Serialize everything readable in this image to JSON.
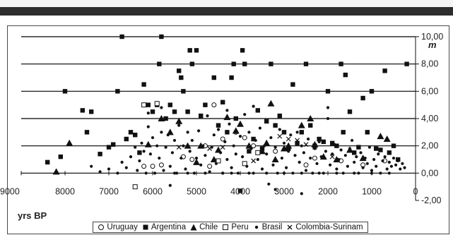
{
  "colors": {
    "ink": "#111111",
    "grid": "#000000",
    "header_bar": "#2d2d2d"
  },
  "chart_data": {
    "type": "scatter",
    "title": "",
    "xlabel": "yrs BP",
    "ylabel": "",
    "y_unit": "m",
    "x_reversed": true,
    "xlim": [
      9000,
      0
    ],
    "ylim": [
      -2,
      10
    ],
    "grid": "horizontal",
    "legend_placement": "bottom",
    "x_tick_labels": [
      "9000",
      "8000",
      "7000",
      "6000",
      "5000",
      "4000",
      "3000",
      "2000",
      "1000",
      "0"
    ],
    "y_tick_labels": [
      "-2,00",
      "0,00",
      "2,00",
      "4,00",
      "6,00",
      "8,00",
      "10,00"
    ],
    "series": [
      {
        "name": "Uruguay",
        "marker": "open-circle",
        "points": [
          [
            6200,
            0.5
          ],
          [
            6000,
            0.5
          ],
          [
            5800,
            0.6
          ],
          [
            5300,
            1.2
          ],
          [
            5100,
            1.0
          ],
          [
            4800,
            2.0
          ],
          [
            4700,
            0.5
          ],
          [
            4600,
            5.0
          ],
          [
            4400,
            2.5
          ],
          [
            4100,
            3.0
          ],
          [
            3900,
            2.6
          ],
          [
            3700,
            2.0
          ],
          [
            3200,
            1.6
          ],
          [
            2500,
            0.6
          ],
          [
            2300,
            1.1
          ],
          [
            1700,
            0.9
          ],
          [
            1200,
            0.6
          ],
          [
            700,
            0.9
          ]
        ]
      },
      {
        "name": "Argentina",
        "marker": "filled-square",
        "points": [
          [
            8400,
            0.8
          ],
          [
            8100,
            1.2
          ],
          [
            8000,
            6.0
          ],
          [
            7600,
            4.6
          ],
          [
            7500,
            3.0
          ],
          [
            7400,
            4.5
          ],
          [
            7200,
            1.4
          ],
          [
            7000,
            1.9
          ],
          [
            6900,
            2.1
          ],
          [
            6800,
            6.0
          ],
          [
            6700,
            10.0
          ],
          [
            6600,
            2.5
          ],
          [
            6500,
            3.0
          ],
          [
            6400,
            2.8
          ],
          [
            6300,
            1.5
          ],
          [
            6200,
            6.5
          ],
          [
            6100,
            5.0
          ],
          [
            6000,
            4.5
          ],
          [
            5900,
            5.0
          ],
          [
            5850,
            8.0
          ],
          [
            5800,
            10.0
          ],
          [
            5700,
            4.0
          ],
          [
            5600,
            5.0
          ],
          [
            5500,
            4.5
          ],
          [
            5400,
            7.5
          ],
          [
            5350,
            7.0
          ],
          [
            5300,
            6.0
          ],
          [
            5200,
            4.5
          ],
          [
            5150,
            9.0
          ],
          [
            5100,
            8.0
          ],
          [
            5000,
            9.0
          ],
          [
            4900,
            4.2
          ],
          [
            4800,
            5.0
          ],
          [
            4600,
            7.0
          ],
          [
            4500,
            3.5
          ],
          [
            4400,
            5.2
          ],
          [
            4300,
            3.0
          ],
          [
            4200,
            7.0
          ],
          [
            4150,
            8.0
          ],
          [
            4100,
            4.0
          ],
          [
            4000,
            -1.3
          ],
          [
            3950,
            9.0
          ],
          [
            3900,
            8.0
          ],
          [
            3800,
            1.6
          ],
          [
            3700,
            2.5
          ],
          [
            3600,
            4.6
          ],
          [
            3500,
            1.8
          ],
          [
            3400,
            3.8
          ],
          [
            3300,
            8.0
          ],
          [
            3200,
            3.5
          ],
          [
            3100,
            4.2
          ],
          [
            3000,
            3.0
          ],
          [
            2900,
            1.8
          ],
          [
            2800,
            6.5
          ],
          [
            2700,
            2.2
          ],
          [
            2600,
            3.0
          ],
          [
            2500,
            8.0
          ],
          [
            2400,
            3.5
          ],
          [
            2300,
            2.0
          ],
          [
            2200,
            2.5
          ],
          [
            2100,
            2.3
          ],
          [
            2000,
            6.0
          ],
          [
            1900,
            2.2
          ],
          [
            1800,
            2.0
          ],
          [
            1700,
            8.0
          ],
          [
            1650,
            3.0
          ],
          [
            1600,
            7.2
          ],
          [
            1500,
            4.5
          ],
          [
            1400,
            1.5
          ],
          [
            1300,
            1.9
          ],
          [
            1200,
            5.5
          ],
          [
            1100,
            3.0
          ],
          [
            1000,
            6.0
          ],
          [
            900,
            1.8
          ],
          [
            800,
            1.7
          ],
          [
            700,
            7.5
          ],
          [
            600,
            1.5
          ],
          [
            500,
            2.0
          ],
          [
            400,
            1.0
          ],
          [
            200,
            8.0
          ]
        ]
      },
      {
        "name": "Chile",
        "marker": "filled-triangle",
        "points": [
          [
            8200,
            0.1
          ],
          [
            7900,
            2.2
          ],
          [
            6100,
            2.1
          ],
          [
            5800,
            4.0
          ],
          [
            5600,
            3.0
          ],
          [
            5400,
            3.8
          ],
          [
            5200,
            2.0
          ],
          [
            5000,
            0.8
          ],
          [
            4900,
            2.0
          ],
          [
            4600,
            1.0
          ],
          [
            4500,
            1.7
          ],
          [
            4300,
            4.1
          ],
          [
            4100,
            3.1
          ],
          [
            4000,
            3.6
          ],
          [
            3800,
            2.0
          ],
          [
            3500,
            1.6
          ],
          [
            3400,
            2.2
          ],
          [
            3300,
            5.1
          ],
          [
            3200,
            1.0
          ],
          [
            3000,
            1.8
          ],
          [
            2900,
            2.0
          ],
          [
            2600,
            3.5
          ],
          [
            2400,
            4.0
          ],
          [
            2300,
            2.1
          ],
          [
            2100,
            1.2
          ],
          [
            1800,
            1.0
          ],
          [
            1500,
            1.7
          ],
          [
            1200,
            1.1
          ],
          [
            800,
            2.7
          ],
          [
            650,
            2.5
          ]
        ]
      },
      {
        "name": "Peru",
        "marker": "open-square",
        "points": [
          [
            6200,
            5.0
          ],
          [
            5900,
            5.1
          ],
          [
            6400,
            -1.0
          ],
          [
            4500,
            0.9
          ],
          [
            3900,
            0.7
          ],
          [
            3600,
            1.5
          ]
        ]
      },
      {
        "name": "Brasil",
        "marker": "small-dot",
        "points": [
          [
            7400,
            0.5
          ],
          [
            7200,
            0.1
          ],
          [
            7000,
            0.3
          ],
          [
            6800,
            0.0
          ],
          [
            6700,
            0.8
          ],
          [
            6600,
            0.4
          ],
          [
            6500,
            1.2
          ],
          [
            6400,
            1.9
          ],
          [
            6350,
            0.2
          ],
          [
            6300,
            0.9
          ],
          [
            6250,
            2.2
          ],
          [
            6200,
            1.6
          ],
          [
            6150,
            0.0
          ],
          [
            6100,
            3.4
          ],
          [
            6050,
            1.4
          ],
          [
            6000,
            2.6
          ],
          [
            5950,
            0.0
          ],
          [
            5900,
            2.0
          ],
          [
            5850,
            1.1
          ],
          [
            5800,
            3.0
          ],
          [
            5750,
            0.2
          ],
          [
            5700,
            1.9
          ],
          [
            5650,
            2.8
          ],
          [
            5600,
            0.5
          ],
          [
            5550,
            1.5
          ],
          [
            5500,
            2.4
          ],
          [
            5450,
            0.0
          ],
          [
            5400,
            3.5
          ],
          [
            5350,
            1.1
          ],
          [
            5300,
            2.0
          ],
          [
            5250,
            0.3
          ],
          [
            5200,
            3.0
          ],
          [
            5150,
            1.6
          ],
          [
            5100,
            2.4
          ],
          [
            5050,
            0.0
          ],
          [
            5000,
            1.1
          ],
          [
            4950,
            3.1
          ],
          [
            4900,
            0.6
          ],
          [
            4850,
            2.0
          ],
          [
            4800,
            1.3
          ],
          [
            4750,
            4.2
          ],
          [
            4700,
            0.1
          ],
          [
            4650,
            1.9
          ],
          [
            4600,
            2.8
          ],
          [
            4550,
            0.7
          ],
          [
            4500,
            3.2
          ],
          [
            4450,
            1.5
          ],
          [
            4400,
            0.0
          ],
          [
            4350,
            2.3
          ],
          [
            4300,
            1.0
          ],
          [
            4250,
            3.6
          ],
          [
            4200,
            0.4
          ],
          [
            4150,
            2.0
          ],
          [
            4100,
            1.4
          ],
          [
            4050,
            0.0
          ],
          [
            4000,
            2.7
          ],
          [
            3950,
            1.2
          ],
          [
            3900,
            4.3
          ],
          [
            3850,
            0.5
          ],
          [
            3800,
            3.0
          ],
          [
            3750,
            1.8
          ],
          [
            3700,
            0.0
          ],
          [
            3650,
            2.4
          ],
          [
            3600,
            1.0
          ],
          [
            3550,
            3.3
          ],
          [
            3500,
            0.3
          ],
          [
            3450,
            2.0
          ],
          [
            3400,
            1.4
          ],
          [
            3350,
            -0.8
          ],
          [
            3300,
            2.6
          ],
          [
            3250,
            0.6
          ],
          [
            3200,
            1.9
          ],
          [
            3150,
            0.0
          ],
          [
            3100,
            3.2
          ],
          [
            3050,
            1.1
          ],
          [
            3000,
            2.2
          ],
          [
            2950,
            0.4
          ],
          [
            2900,
            1.6
          ],
          [
            2850,
            2.8
          ],
          [
            2800,
            0.0
          ],
          [
            2750,
            1.3
          ],
          [
            2700,
            3.0
          ],
          [
            2650,
            0.8
          ],
          [
            2600,
            2.0
          ],
          [
            2550,
            1.5
          ],
          [
            2500,
            0.2
          ],
          [
            2450,
            2.5
          ],
          [
            2400,
            1.1
          ],
          [
            2350,
            0.0
          ],
          [
            2300,
            1.8
          ],
          [
            2250,
            0.7
          ],
          [
            2200,
            2.3
          ],
          [
            2150,
            1.2
          ],
          [
            2100,
            0.0
          ],
          [
            2050,
            1.6
          ],
          [
            2000,
            4.0
          ],
          [
            1950,
            0.6
          ],
          [
            1900,
            1.4
          ],
          [
            1850,
            2.1
          ],
          [
            1800,
            0.3
          ],
          [
            1750,
            1.0
          ],
          [
            1700,
            1.7
          ],
          [
            1650,
            0.0
          ],
          [
            1600,
            1.3
          ],
          [
            1550,
            0.5
          ],
          [
            1500,
            1.8
          ],
          [
            1450,
            2.4
          ],
          [
            1400,
            0.8
          ],
          [
            1350,
            1.2
          ],
          [
            1300,
            0.0
          ],
          [
            1250,
            1.5
          ],
          [
            1200,
            0.4
          ],
          [
            1150,
            1.1
          ],
          [
            1100,
            0.7
          ],
          [
            1050,
            1.9
          ],
          [
            1000,
            0.2
          ],
          [
            950,
            1.0
          ],
          [
            900,
            0.5
          ],
          [
            850,
            1.4
          ],
          [
            800,
            0.0
          ],
          [
            750,
            0.9
          ],
          [
            700,
            1.2
          ],
          [
            650,
            0.3
          ],
          [
            600,
            0.8
          ],
          [
            550,
            0.5
          ],
          [
            500,
            1.1
          ],
          [
            450,
            0.6
          ],
          [
            400,
            0.9
          ],
          [
            350,
            0.3
          ],
          [
            300,
            0.7
          ],
          [
            250,
            0.4
          ],
          [
            5600,
            -0.9
          ],
          [
            3200,
            -1.2
          ],
          [
            2600,
            -1.5
          ],
          [
            5800,
            4.8
          ],
          [
            6100,
            4.4
          ],
          [
            4300,
            4.6
          ],
          [
            3700,
            4.9
          ],
          [
            2000,
            4.8
          ],
          [
            5500,
            0.0
          ],
          [
            5200,
            0.0
          ],
          [
            4800,
            0.0
          ],
          [
            4400,
            0.0
          ],
          [
            4200,
            0.0
          ],
          [
            3800,
            0.0
          ],
          [
            3400,
            0.0
          ],
          [
            3000,
            0.0
          ],
          [
            2600,
            0.0
          ],
          [
            2200,
            0.0
          ],
          [
            1800,
            0.0
          ],
          [
            1400,
            0.0
          ],
          [
            1000,
            0.0
          ],
          [
            600,
            0.0
          ]
        ]
      },
      {
        "name": "Colombia-Surinam",
        "marker": "cross",
        "points": [
          [
            5400,
            1.9
          ],
          [
            4700,
            1.8
          ],
          [
            4400,
            1.9
          ],
          [
            3700,
            0.9
          ],
          [
            3100,
            2.7
          ],
          [
            2900,
            2.5
          ],
          [
            2700,
            2.4
          ],
          [
            2500,
            2.1
          ],
          [
            2300,
            1.9
          ],
          [
            1900,
            1.2
          ]
        ]
      }
    ]
  }
}
